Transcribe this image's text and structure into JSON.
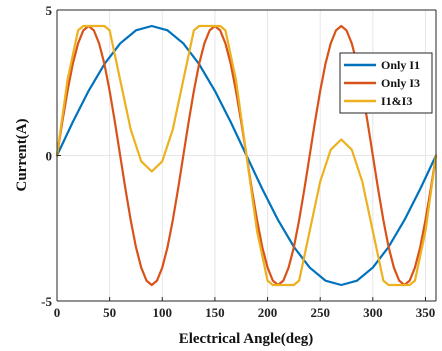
{
  "chart_data": {
    "type": "line",
    "xlabel": "Electrical Angle(deg)",
    "ylabel": "Current(A)",
    "xlim": [
      0,
      360
    ],
    "ylim": [
      -5,
      5
    ],
    "x_ticks": [
      0,
      50,
      100,
      150,
      200,
      250,
      300,
      350
    ],
    "y_ticks": [
      -5,
      0,
      5
    ],
    "grid": true,
    "legend_position": "top-right",
    "series": [
      {
        "name": "Only I1",
        "color": "#0072BD",
        "x": [
          0,
          15,
          30,
          45,
          60,
          75,
          90,
          105,
          120,
          135,
          150,
          165,
          180,
          195,
          210,
          225,
          240,
          255,
          270,
          285,
          300,
          315,
          330,
          345,
          360
        ],
        "y": [
          0,
          1.15,
          2.22,
          3.14,
          3.85,
          4.3,
          4.45,
          4.3,
          3.85,
          3.14,
          2.22,
          1.15,
          0,
          -1.15,
          -2.22,
          -3.14,
          -3.85,
          -4.3,
          -4.45,
          -4.3,
          -3.85,
          -3.14,
          -2.22,
          -1.15,
          0
        ]
      },
      {
        "name": "Only I3",
        "color": "#D95319",
        "x": [
          0,
          5,
          10,
          15,
          20,
          25,
          30,
          35,
          40,
          45,
          50,
          55,
          60,
          65,
          70,
          75,
          80,
          85,
          90,
          95,
          100,
          105,
          110,
          115,
          120,
          125,
          130,
          135,
          140,
          145,
          150,
          155,
          160,
          165,
          170,
          175,
          180,
          185,
          190,
          195,
          200,
          205,
          210,
          215,
          220,
          225,
          230,
          235,
          240,
          245,
          250,
          255,
          260,
          265,
          270,
          275,
          280,
          285,
          290,
          295,
          300,
          305,
          310,
          315,
          320,
          325,
          330,
          335,
          340,
          345,
          350,
          355,
          360
        ],
        "y": [
          0,
          1.15,
          2.22,
          3.15,
          3.85,
          4.3,
          4.45,
          4.3,
          3.85,
          3.15,
          2.22,
          1.15,
          0,
          -1.15,
          -2.22,
          -3.15,
          -3.85,
          -4.3,
          -4.45,
          -4.3,
          -3.85,
          -3.15,
          -2.22,
          -1.15,
          0,
          1.15,
          2.22,
          3.15,
          3.85,
          4.3,
          4.45,
          4.3,
          3.85,
          3.15,
          2.22,
          1.15,
          0,
          -1.15,
          -2.22,
          -3.15,
          -3.85,
          -4.3,
          -4.45,
          -4.3,
          -3.85,
          -3.15,
          -2.22,
          -1.15,
          0,
          1.15,
          2.22,
          3.15,
          3.85,
          4.3,
          4.45,
          4.3,
          3.85,
          3.15,
          2.22,
          1.15,
          0,
          -1.15,
          -2.22,
          -3.15,
          -3.85,
          -4.3,
          -4.45,
          -4.3,
          -3.85,
          -3.15,
          -2.22,
          -1.15,
          0
        ]
      },
      {
        "name": "I1&I3",
        "color": "#EDB120",
        "x": [
          0,
          10,
          20,
          25,
          45,
          50,
          60,
          70,
          80,
          90,
          100,
          110,
          120,
          130,
          135,
          155,
          160,
          170,
          180,
          190,
          200,
          205,
          225,
          230,
          240,
          250,
          260,
          270,
          280,
          290,
          300,
          310,
          315,
          335,
          340,
          350,
          360
        ],
        "y": [
          0,
          2.6,
          4.3,
          4.45,
          4.45,
          4.3,
          2.6,
          0.9,
          -0.2,
          -0.55,
          -0.2,
          0.9,
          2.6,
          4.3,
          4.45,
          4.45,
          4.3,
          2.6,
          0,
          -2.6,
          -4.3,
          -4.45,
          -4.45,
          -4.3,
          -2.6,
          -0.9,
          0.2,
          0.55,
          0.2,
          -0.9,
          -2.6,
          -4.3,
          -4.45,
          -4.45,
          -4.3,
          -2.6,
          0
        ]
      }
    ]
  }
}
